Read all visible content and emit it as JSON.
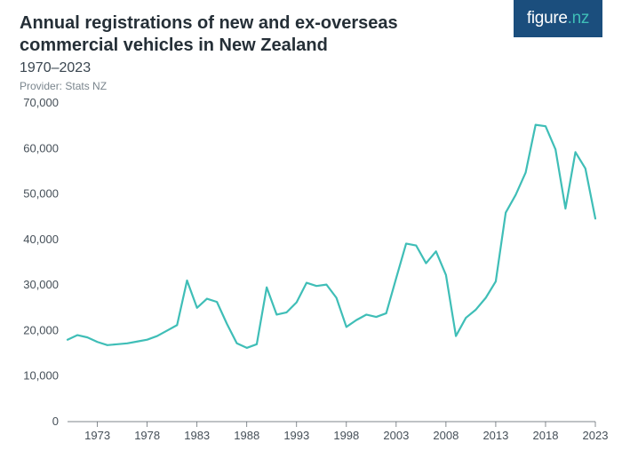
{
  "logo": {
    "brand": "figure",
    "tld": ".nz",
    "bg": "#1b4e7d",
    "dot_color": "#3fbeb7"
  },
  "header": {
    "title": "Annual registrations of new and ex-overseas commercial vehicles in New Zealand",
    "subtitle": "1970–2023",
    "provider": "Provider: Stats NZ"
  },
  "chart": {
    "type": "line",
    "background_color": "#ffffff",
    "line_color": "#3fbeb7",
    "line_width": 2.2,
    "axis_text_color": "#454f58",
    "baseline_color": "#555d64",
    "axis_fontsize": 13,
    "title_fontsize": 20,
    "xlim": [
      1970,
      2023
    ],
    "ylim": [
      0,
      70000
    ],
    "ytick_step": 10000,
    "yticks": [
      0,
      10000,
      20000,
      30000,
      40000,
      50000,
      60000,
      70000
    ],
    "ytick_labels": [
      "0",
      "10,000",
      "20,000",
      "30,000",
      "40,000",
      "50,000",
      "60,000",
      "70,000"
    ],
    "xticks": [
      1973,
      1978,
      1983,
      1988,
      1993,
      1998,
      2003,
      2008,
      2013,
      2018,
      2023
    ],
    "series": {
      "years": [
        1970,
        1971,
        1972,
        1973,
        1974,
        1975,
        1976,
        1977,
        1978,
        1979,
        1980,
        1981,
        1982,
        1983,
        1984,
        1985,
        1986,
        1987,
        1988,
        1989,
        1990,
        1991,
        1992,
        1993,
        1994,
        1995,
        1996,
        1997,
        1998,
        1999,
        2000,
        2001,
        2002,
        2003,
        2004,
        2005,
        2006,
        2007,
        2008,
        2009,
        2010,
        2011,
        2012,
        2013,
        2014,
        2015,
        2016,
        2017,
        2018,
        2019,
        2020,
        2021,
        2022,
        2023
      ],
      "values": [
        18000,
        19000,
        18500,
        17500,
        16800,
        17000,
        17200,
        17600,
        18000,
        18800,
        20000,
        21200,
        31000,
        25000,
        27000,
        26300,
        21500,
        17200,
        16200,
        17000,
        29500,
        23500,
        24000,
        26200,
        30500,
        29800,
        30100,
        27200,
        20800,
        22300,
        23500,
        23000,
        23800,
        31500,
        39100,
        38700,
        34800,
        37400,
        32200,
        18800,
        22800,
        24600,
        27200,
        30800,
        45900,
        49800,
        54700,
        65200,
        64900,
        59800,
        46800,
        59200,
        55600,
        44600
      ]
    }
  }
}
